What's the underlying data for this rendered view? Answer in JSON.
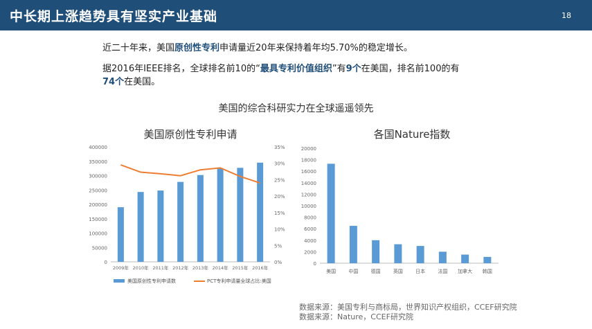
{
  "header": {
    "title": "中长期上涨趋势具有坚实产业基础",
    "page_number": "18"
  },
  "paragraph1": {
    "prefix": "近二十年来，美国",
    "highlight": "原创性专利",
    "suffix": "申请量近20年来保持着年均5.70%的稳定增长。"
  },
  "paragraph2": {
    "prefix": "据2016年IEEE排名，全球排名前10的“",
    "highlight1": "最具专利价值组织",
    "middle1": "”有",
    "highlight2": "9个",
    "middle2": "在美国，排名前100的有",
    "highlight3": "74个",
    "suffix": "在美国。"
  },
  "section_title": "美国的综合科研实力在全球遥遥领先",
  "sources": [
    "数据来源：美国专利与商标局，世界知识产权组织，CCEF研究院",
    "数据来源：Nature，CCEF研究院"
  ],
  "colors": {
    "header": "#1f4e79",
    "bar": "#5b9bd5",
    "line": "#ed7d31"
  },
  "chart_data": [
    {
      "type": "bar",
      "title": "美国原创性专利申请",
      "categories": [
        "2009年",
        "2010年",
        "2011年",
        "2012年",
        "2013年",
        "2014年",
        "2015年",
        "2016年"
      ],
      "series": [
        {
          "name": "美国原创性专利申请数",
          "values": [
            190000,
            243000,
            248000,
            278000,
            302000,
            326000,
            327000,
            345000
          ]
        },
        {
          "name": "PCT专利申请量全球占比:美国",
          "values": [
            29.5,
            27.3,
            26.8,
            26.2,
            28.0,
            28.6,
            26.0,
            24.0
          ]
        }
      ],
      "ylim": [
        0,
        400000
      ],
      "y_ticks": [
        "0",
        "50000",
        "100000",
        "150000",
        "200000",
        "250000",
        "300000",
        "350000",
        "400000"
      ],
      "y2lim": [
        0,
        35
      ],
      "y2_ticks": [
        "0%",
        "5%",
        "10%",
        "15%",
        "20%",
        "25%",
        "30%",
        "35%"
      ],
      "legend": "bottom"
    },
    {
      "type": "bar",
      "title": "各国Nature指数",
      "categories": [
        "美国",
        "中国",
        "德国",
        "英国",
        "日本",
        "法国",
        "加拿大",
        "韩国"
      ],
      "values": [
        17300,
        6500,
        4000,
        3300,
        3000,
        2000,
        1500,
        1100
      ],
      "ylim": [
        0,
        20000
      ],
      "y_ticks": [
        "0",
        "2000",
        "4000",
        "6000",
        "8000",
        "10000",
        "12000",
        "14000",
        "16000",
        "18000",
        "20000"
      ]
    }
  ]
}
